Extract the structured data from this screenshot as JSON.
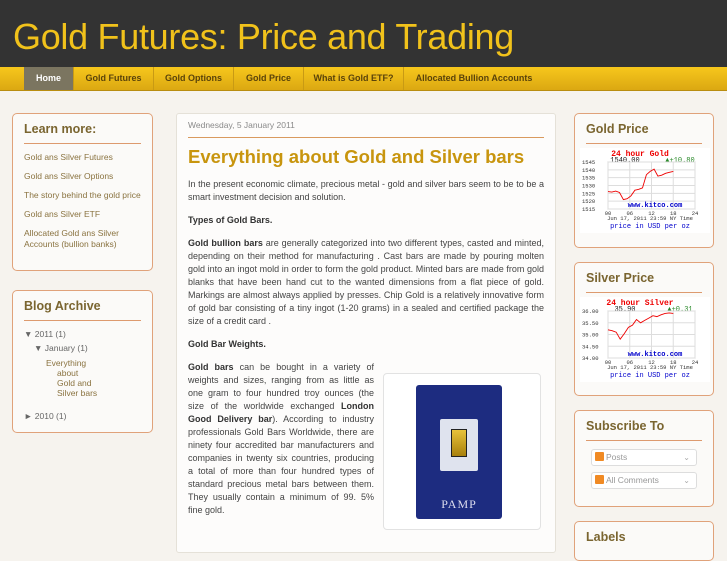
{
  "header": {
    "title": "Gold Futures: Price and Trading"
  },
  "nav": {
    "items": [
      "Home",
      "Gold Futures",
      "Gold Options",
      "Gold Price",
      "What is Gold ETF?",
      "Allocated Bullion Accounts"
    ]
  },
  "sidebar_left": {
    "learn_more": {
      "title": "Learn more:",
      "links": [
        "Gold ans Silver Futures",
        "Gold ans Silver Options",
        "The story behind the gold price",
        "Gold ans Silver ETF",
        "Allocated Gold ans Silver Accounts (bullion banks)"
      ]
    },
    "archive": {
      "title": "Blog Archive",
      "y2011": "▼ 2011 (1)",
      "jan": "▼ January (1)",
      "post": "Everything about Gold and Silver bars",
      "y2010": "► 2010 (1)"
    }
  },
  "post": {
    "date": "Wednesday, 5 January 2011",
    "title": "Everything about Gold and Silver bars",
    "intro": "In the present economic climate, precious metal - gold and silver bars seem to be to be a smart investment decision and solution.",
    "h_types": "Types of Gold Bars.",
    "p2_bold": "Gold bullion bars",
    "p2": " are generally categorized into two different types, casted and minted, depending on their method for manufacturing . Cast bars are made by pouring molten gold into an ingot mold in order to form the gold product. Minted bars are made from gold blanks that have been hand cut to the wanted dimensions from a flat piece of gold. Markings are almost always applied by presses. Chip Gold is a relatively innovative form of gold bar consisting of a tiny ingot (1-20 grams) in a sealed and certified package the size of a credit card .",
    "h_weights": "Gold Bar Weights.",
    "p3_bold": "Gold bars",
    "p3a": " can be bought in a variety of weights and sizes, ranging from as little as one gram to four hundred troy ounces (the size of the worldwide exchanged ",
    "p3_bold2": "London Good Delivery bar",
    "p3b": "). According to industry professionals Gold Bars Worldwide, there are ninety four accredited bar manufacturers and companies in twenty six countries, producing a total of more than four hundred types of standard precious metal bars between them. They usually contain a minimum of 99. 5% fine gold.",
    "image_brand": "PAMP"
  },
  "sidebar_right": {
    "gold": {
      "title": "Gold Price",
      "chart_title": "24 hour Gold",
      "price": "1540.00",
      "change": "+10.80",
      "yticks": [
        "1545",
        "1540",
        "1535",
        "1530",
        "1525",
        "1520",
        "1515"
      ],
      "xticks": [
        "00",
        "06",
        "12",
        "18",
        "24"
      ],
      "site": "www.kitco.com",
      "timestamp": "Jun 17, 2011 23:59 NY Time",
      "unit": "price in USD per oz"
    },
    "silver": {
      "title": "Silver Price",
      "chart_title": "24 hour Silver",
      "price": "35.90",
      "change": "+0.31",
      "yticks": [
        "36.00",
        "35.50",
        "35.00",
        "34.50",
        "34.00"
      ],
      "xticks": [
        "00",
        "06",
        "12",
        "18",
        "24"
      ],
      "site": "www.kitco.com",
      "timestamp": "Jun 17, 2011 23:59 NY Time",
      "unit": "price in USD per oz"
    },
    "subscribe": {
      "title": "Subscribe To",
      "posts": "Posts",
      "comments": "All Comments"
    },
    "labels": {
      "title": "Labels"
    }
  },
  "colors": {
    "accent": "#f1c21b",
    "border": "#e0a27a",
    "link": "#8a7340"
  }
}
